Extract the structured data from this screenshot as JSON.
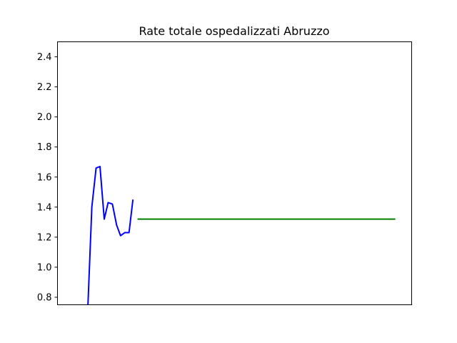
{
  "chart_data": {
    "type": "line",
    "title": "Rate totale ospedalizzati Abruzzo",
    "xlabel": "",
    "ylabel": "",
    "ylim": [
      0.75,
      2.5
    ],
    "xlim": [
      0,
      100
    ],
    "grid": false,
    "y_ticks": [
      "0.8",
      "1.0",
      "1.2",
      "1.4",
      "1.6",
      "1.8",
      "2.0",
      "2.2",
      "2.4"
    ],
    "series": [
      {
        "color": "#0000ff",
        "x": [
          8.6,
          9.7,
          10.9,
          12.0,
          13.2,
          14.3,
          15.5,
          16.7,
          17.8,
          19.0,
          20.2,
          21.3
        ],
        "y": [
          0.75,
          1.4,
          1.66,
          1.67,
          1.32,
          1.43,
          1.42,
          1.28,
          1.21,
          1.23,
          1.23,
          1.45
        ]
      },
      {
        "color": "#008000",
        "x": [
          22.6,
          95.4
        ],
        "y": [
          1.32,
          1.32
        ]
      }
    ]
  }
}
